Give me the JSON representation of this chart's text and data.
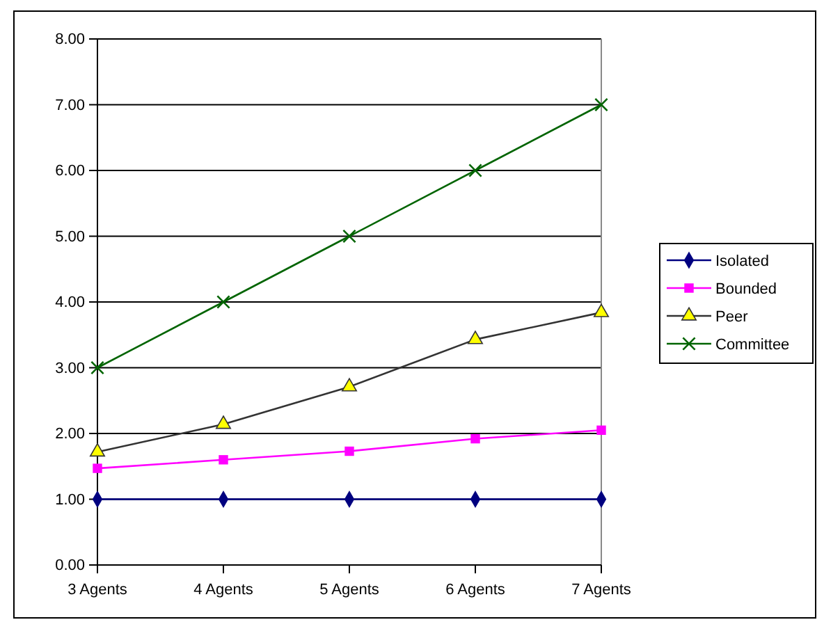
{
  "chart_data": {
    "type": "line",
    "categories": [
      "3  Agents",
      "4  Agents",
      "5  Agents",
      "6  Agents",
      "7  Agents"
    ],
    "series": [
      {
        "name": "Isolated",
        "color": "#000080",
        "marker": "diamond",
        "values": [
          1,
          1,
          1,
          1,
          1
        ]
      },
      {
        "name": "Bounded",
        "color": "#ff00ff",
        "marker": "square",
        "values": [
          1.47,
          1.6,
          1.73,
          1.92,
          2.05
        ]
      },
      {
        "name": "Peer",
        "color": "#333333",
        "colors": [
          "#ffff00",
          "#ffff00",
          "#ffff00",
          "#ffff00",
          "#ffff00"
        ],
        "marker": "triangle",
        "values": [
          1.72,
          2.14,
          2.71,
          3.43,
          3.84
        ]
      },
      {
        "name": "Committee",
        "color": "#006400",
        "marker": "cross",
        "values": [
          3,
          4,
          5,
          6,
          7
        ]
      }
    ],
    "ylim": [
      0,
      8
    ],
    "yticks": [
      {
        "value": 0,
        "label": "0.00"
      },
      {
        "value": 1,
        "label": "1.00"
      },
      {
        "value": 2,
        "label": "2.00"
      },
      {
        "value": 3,
        "label": "3.00"
      },
      {
        "value": 4,
        "label": "4.00"
      },
      {
        "value": 5,
        "label": "5.00"
      },
      {
        "value": 6,
        "label": "6.00"
      },
      {
        "value": 7,
        "label": "7.00"
      },
      {
        "value": 8,
        "label": "8.00"
      }
    ],
    "grid": "y",
    "legend": "right"
  }
}
